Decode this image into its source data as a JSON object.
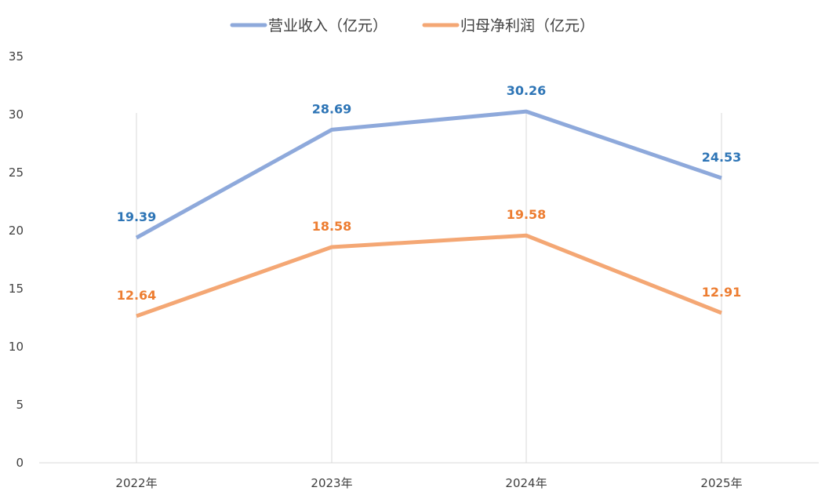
{
  "chart_data": {
    "type": "line",
    "title": "",
    "xlabel": "",
    "ylabel": "",
    "categories": [
      "2022年",
      "2023年",
      "2024年",
      "2025年"
    ],
    "ylim": [
      0,
      35
    ],
    "yticks": [
      0,
      5,
      10,
      15,
      20,
      25,
      30,
      35
    ],
    "grid": "vertical",
    "legend_position": "top",
    "series": [
      {
        "name": "营业收入（亿元）",
        "values": [
          19.39,
          28.69,
          30.26,
          24.53
        ],
        "labels": [
          "19.39",
          "28.69",
          "30.26",
          "24.53"
        ],
        "color": "#8EA9DB",
        "label_color": "#2E75B6"
      },
      {
        "name": "归母净利润（亿元）",
        "values": [
          12.64,
          18.58,
          19.58,
          12.91
        ],
        "labels": [
          "12.64",
          "18.58",
          "19.58",
          "12.91"
        ],
        "color": "#F4A774",
        "label_color": "#ED7D31"
      }
    ]
  }
}
